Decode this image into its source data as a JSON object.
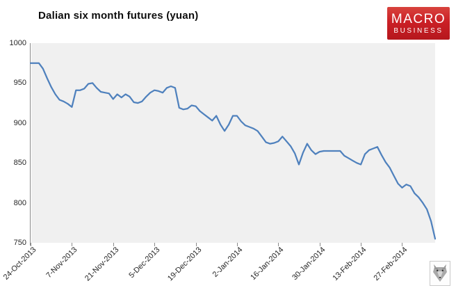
{
  "header": {
    "title": "Dalian six month futures (yuan)"
  },
  "logo": {
    "line1": "MACRO",
    "line2": "BUSINESS",
    "bg_color": "#cb2026",
    "text_color": "#ffffff"
  },
  "watermark": {
    "icon": "wolf-face-icon"
  },
  "chart_data": {
    "type": "line",
    "title": "Dalian six month futures (yuan)",
    "xlabel": "",
    "ylabel": "",
    "ylim": [
      750,
      1000
    ],
    "y_ticks": [
      1000,
      950,
      900,
      850,
      800,
      750
    ],
    "x_tick_labels": [
      "24-Oct-2013",
      "7-Nov-2013",
      "21-Nov-2013",
      "5-Dec-2013",
      "19-Dec-2013",
      "2-Jan-2014",
      "16-Jan-2014",
      "30-Jan-2014",
      "13-Feb-2014",
      "27-Feb-2014"
    ],
    "x_tick_indices": [
      0,
      10,
      20,
      30,
      40,
      50,
      60,
      70,
      80,
      90
    ],
    "grid": false,
    "legend": "none",
    "plot_bg_color": "#f0f0f0",
    "line_color": "#4f81bd",
    "values": [
      975,
      975,
      975,
      968,
      956,
      945,
      936,
      929,
      927,
      924,
      920,
      941,
      941,
      943,
      949,
      950,
      944,
      939,
      938,
      937,
      930,
      936,
      932,
      936,
      933,
      926,
      925,
      927,
      933,
      938,
      941,
      940,
      938,
      944,
      946,
      944,
      919,
      917,
      918,
      922,
      921,
      915,
      911,
      907,
      903,
      909,
      898,
      890,
      898,
      909,
      909,
      902,
      897,
      895,
      893,
      890,
      883,
      876,
      874,
      875,
      877,
      883,
      877,
      871,
      862,
      848,
      863,
      874,
      866,
      861,
      864,
      865,
      865,
      865,
      865,
      865,
      859,
      856,
      853,
      850,
      848,
      861,
      866,
      868,
      870,
      860,
      851,
      844,
      834,
      824,
      819,
      823,
      821,
      812,
      807,
      800,
      792,
      777,
      755
    ]
  }
}
